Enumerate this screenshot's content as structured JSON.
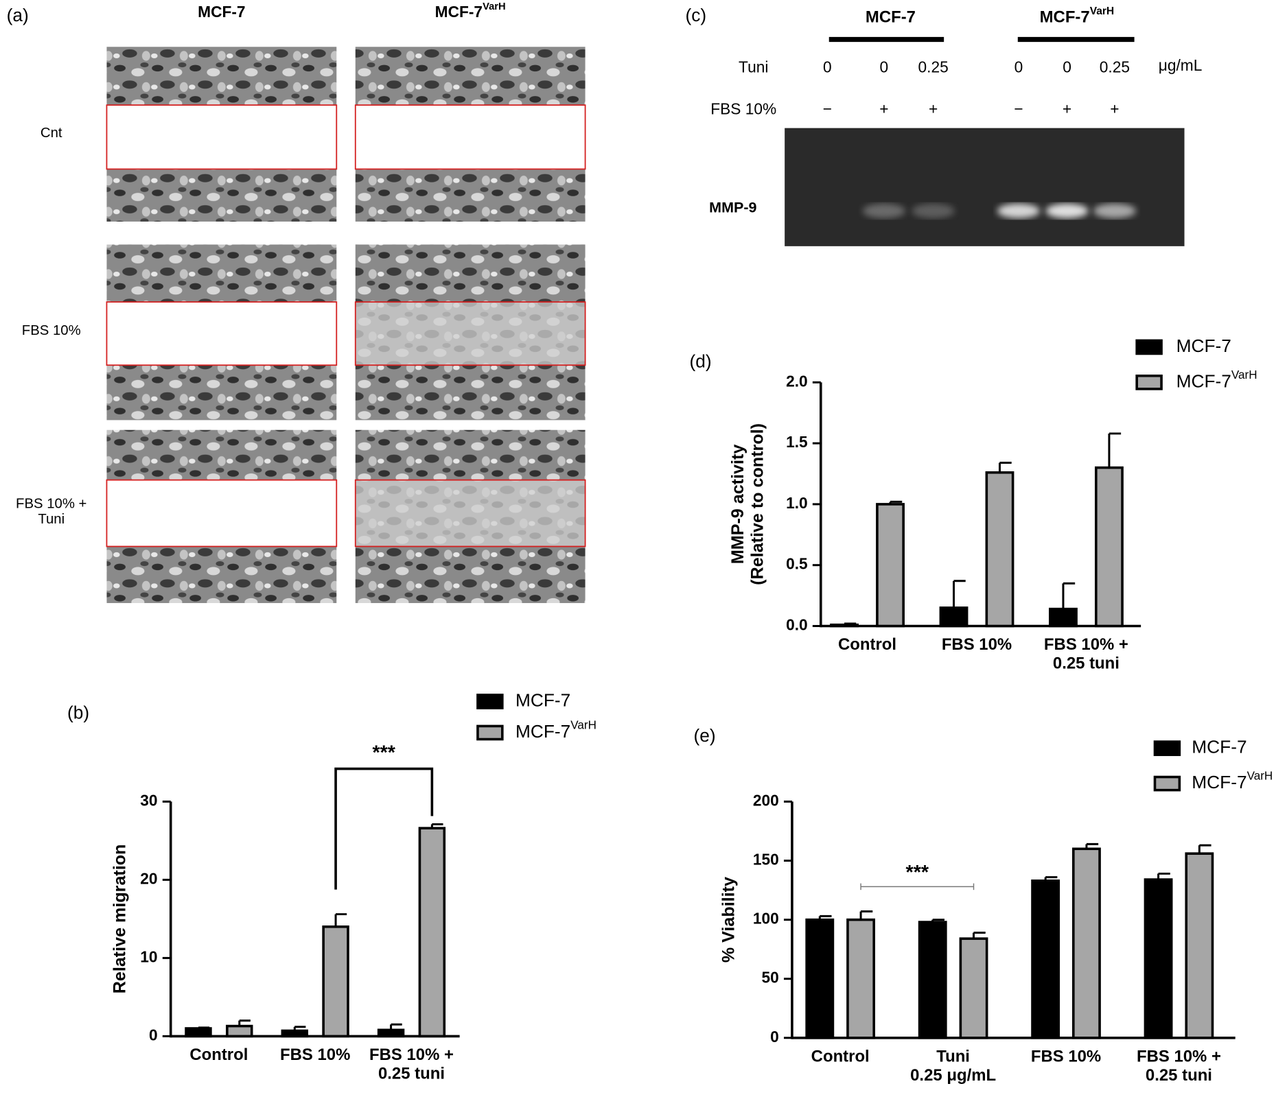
{
  "panel_a": {
    "label": "(a)",
    "columns": [
      {
        "name": "MCF-7"
      },
      {
        "name": "MCF-7",
        "superscript": "VarH"
      }
    ],
    "rows": [
      "Cnt",
      "FBS 10%",
      "FBS 10% +\nTuni"
    ]
  },
  "panel_c": {
    "label": "(c)",
    "groups": [
      {
        "name": "MCF-7"
      },
      {
        "name": "MCF-7",
        "superscript": "VarH"
      }
    ],
    "tuni_label": "Tuni",
    "tuni_values": [
      "0",
      "0",
      "0.25",
      "0",
      "0",
      "0.25"
    ],
    "unit": "μg/mL",
    "fbs_label": "FBS 10%",
    "fbs_signs": [
      "−",
      "+",
      "+",
      "−",
      "+",
      "+"
    ],
    "band_label": "MMP-9"
  },
  "chart_data": [
    {
      "type": "bar",
      "label": "(b)",
      "y_label": "Relative migration",
      "categories": [
        "Control",
        "FBS 10%",
        "FBS 10% +\n0.25 tuni"
      ],
      "series": [
        {
          "name": "MCF-7",
          "color": "#000000",
          "values": [
            1.0,
            0.7,
            0.8
          ],
          "errors": [
            0.1,
            0.5,
            0.7
          ]
        },
        {
          "name": "MCF-7",
          "superscript": "VarH",
          "color": "#a6a6a6",
          "values": [
            1.3,
            14.0,
            26.6
          ],
          "errors": [
            0.7,
            1.6,
            0.5
          ]
        }
      ],
      "ylim": [
        0,
        30
      ],
      "yticks": [
        0,
        10,
        20,
        30
      ],
      "annotation": "***"
    },
    {
      "type": "bar",
      "label": "(d)",
      "y_label": [
        "MMP-9 activity",
        "(Relative to control)"
      ],
      "categories": [
        "Control",
        "FBS 10%",
        "FBS 10% +\n0.25 tuni"
      ],
      "series": [
        {
          "name": "MCF-7",
          "color": "#000000",
          "values": [
            0.01,
            0.15,
            0.14
          ],
          "errors": [
            0.01,
            0.22,
            0.21
          ]
        },
        {
          "name": "MCF-7",
          "superscript": "VarH",
          "color": "#a6a6a6",
          "values": [
            1.0,
            1.26,
            1.3
          ],
          "errors": [
            0.02,
            0.08,
            0.28
          ]
        }
      ],
      "ylim": [
        0,
        2
      ],
      "yticks": [
        {
          "value": 0,
          "label": "0.0"
        },
        {
          "value": 0.5,
          "label": "0.5"
        },
        {
          "value": 1,
          "label": "1.0"
        },
        {
          "value": 1.5,
          "label": "1.5"
        },
        {
          "value": 2,
          "label": "2.0"
        }
      ]
    },
    {
      "type": "bar",
      "label": "(e)",
      "y_label": "% Viability",
      "categories": [
        "Control",
        "Tuni\n0.25 μg/mL",
        "FBS 10%",
        "FBS 10% +\n0.25  tuni"
      ],
      "series": [
        {
          "name": "MCF-7",
          "color": "#000000",
          "values": [
            100,
            98,
            133,
            134
          ],
          "errors": [
            3,
            2,
            3,
            5
          ]
        },
        {
          "name": "MCF-7",
          "superscript": "VarH",
          "color": "#a6a6a6",
          "values": [
            100,
            84,
            160,
            156
          ],
          "errors": [
            7,
            5,
            4,
            7
          ]
        }
      ],
      "ylim": [
        0,
        200
      ],
      "yticks": [
        0,
        50,
        100,
        150,
        200
      ],
      "annotation": "***"
    }
  ]
}
